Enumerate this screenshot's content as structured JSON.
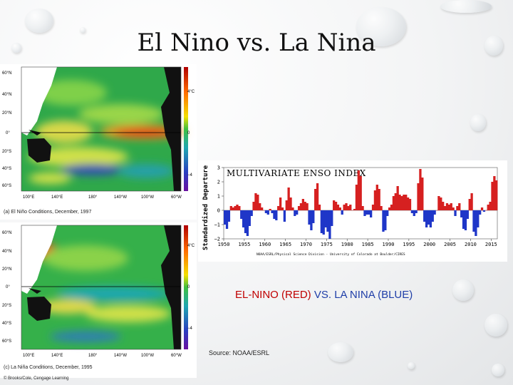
{
  "slide": {
    "title": "El Nino vs. La Nina",
    "headline_red": "EL-NINO (RED)",
    "headline_vs": "VS.",
    "headline_blue": "LA NINA (BLUE)",
    "source": "Source:  NOAA/ESRL",
    "credit": "© Brooks/Cole, Cengage Learning"
  },
  "maps": [
    {
      "caption": "(a) El Niño Conditions, December, 1997",
      "lat_labels": [
        "60°N",
        "40°N",
        "20°N",
        "0°",
        "20°S",
        "40°S",
        "60°S"
      ],
      "lon_labels": [
        "100°E",
        "140°E",
        "180°",
        "140°W",
        "100°W",
        "60°W"
      ],
      "scale_labels": [
        "4°C",
        "0",
        "−4"
      ],
      "colors": {
        "warm": "#e03018",
        "cool": "#2f4fb0"
      }
    },
    {
      "caption": "(c) La Niña Conditions, December, 1995",
      "lat_labels": [
        "60°N",
        "40°N",
        "20°N",
        "0°",
        "20°S",
        "40°S",
        "60°S"
      ],
      "lon_labels": [
        "100°E",
        "140°E",
        "180°",
        "140°W",
        "100°W",
        "60°W"
      ],
      "scale_labels": [
        "4°C",
        "0",
        "−4"
      ],
      "colors": {
        "warm": "#e03018",
        "cool": "#2f4fb0"
      }
    }
  ],
  "chart_data": {
    "type": "bar",
    "title": "MULTIVARIATE ENSO INDEX",
    "ylabel": "Standardized Departure",
    "xlabel": "",
    "ylim": [
      -2,
      3
    ],
    "yticks": [
      -2,
      -1,
      0,
      1,
      2,
      3
    ],
    "xticks": [
      1950,
      1955,
      1960,
      1965,
      1970,
      1975,
      1980,
      1985,
      1990,
      1995,
      2000,
      2005,
      2010,
      2015
    ],
    "credit": "NOAA/ESRL/Physical Science Division - University of Colorado at Boulder/CIRES",
    "colors": {
      "positive": "#d62020",
      "negative": "#1f36c8"
    },
    "x": [
      1950,
      1950.5,
      1951,
      1951.5,
      1952,
      1952.5,
      1953,
      1953.5,
      1954,
      1954.5,
      1955,
      1955.5,
      1956,
      1956.5,
      1957,
      1957.5,
      1958,
      1958.5,
      1959,
      1959.5,
      1960,
      1960.5,
      1961,
      1961.5,
      1962,
      1962.5,
      1963,
      1963.5,
      1964,
      1964.5,
      1965,
      1965.5,
      1966,
      1966.5,
      1967,
      1967.5,
      1968,
      1968.5,
      1969,
      1969.5,
      1970,
      1970.5,
      1971,
      1971.5,
      1972,
      1972.5,
      1973,
      1973.5,
      1974,
      1974.5,
      1975,
      1975.5,
      1976,
      1976.5,
      1977,
      1977.5,
      1978,
      1978.5,
      1979,
      1979.5,
      1980,
      1980.5,
      1981,
      1981.5,
      1982,
      1982.5,
      1983,
      1983.5,
      1984,
      1984.5,
      1985,
      1985.5,
      1986,
      1986.5,
      1987,
      1987.5,
      1988,
      1988.5,
      1989,
      1989.5,
      1990,
      1990.5,
      1991,
      1991.5,
      1992,
      1992.5,
      1993,
      1993.5,
      1994,
      1994.5,
      1995,
      1995.5,
      1996,
      1996.5,
      1997,
      1997.5,
      1998,
      1998.5,
      1999,
      1999.5,
      2000,
      2000.5,
      2001,
      2001.5,
      2002,
      2002.5,
      2003,
      2003.5,
      2004,
      2004.5,
      2005,
      2005.5,
      2006,
      2006.5,
      2007,
      2007.5,
      2008,
      2008.5,
      2009,
      2009.5,
      2010,
      2010.5,
      2011,
      2011.5,
      2012,
      2012.5,
      2013,
      2013.5,
      2014,
      2014.5,
      2015,
      2015.5,
      2016
    ],
    "values": [
      -1.0,
      -1.3,
      -0.8,
      0.3,
      0.2,
      0.3,
      0.4,
      0.3,
      -0.6,
      -1.2,
      -1.6,
      -1.8,
      -1.1,
      -0.4,
      0.6,
      1.2,
      1.1,
      0.5,
      0.2,
      0.0,
      -0.2,
      -0.3,
      0.1,
      -0.2,
      -0.6,
      -0.7,
      0.3,
      0.9,
      0.2,
      -0.8,
      0.7,
      1.6,
      0.9,
      0.2,
      -0.4,
      -0.3,
      0.3,
      0.5,
      0.8,
      0.6,
      0.5,
      -1.0,
      -1.4,
      -0.9,
      1.5,
      1.9,
      0.4,
      -1.6,
      -1.7,
      -1.2,
      -1.5,
      -2.0,
      -1.1,
      0.7,
      0.6,
      0.4,
      0.2,
      -0.3,
      0.4,
      0.5,
      0.3,
      0.4,
      0.0,
      0.1,
      1.8,
      2.8,
      2.4,
      0.3,
      -0.4,
      -0.3,
      -0.3,
      -0.5,
      0.4,
      1.4,
      1.8,
      1.5,
      0.3,
      -1.5,
      -1.4,
      -0.4,
      0.2,
      0.4,
      1.0,
      1.2,
      1.7,
      1.1,
      1.0,
      1.1,
      1.1,
      0.9,
      0.8,
      -0.2,
      -0.4,
      -0.2,
      1.9,
      2.9,
      2.3,
      -0.8,
      -1.2,
      -1.0,
      -1.2,
      -0.8,
      -0.3,
      0.0,
      1.0,
      0.9,
      0.6,
      0.3,
      0.5,
      0.4,
      0.5,
      0.2,
      -0.4,
      0.3,
      0.5,
      -0.5,
      -1.3,
      -1.4,
      -0.6,
      0.8,
      1.2,
      -1.5,
      -1.8,
      -1.2,
      -0.3,
      0.2,
      -0.1,
      0.0,
      0.4,
      0.6,
      2.0,
      2.4,
      2.1
    ]
  }
}
